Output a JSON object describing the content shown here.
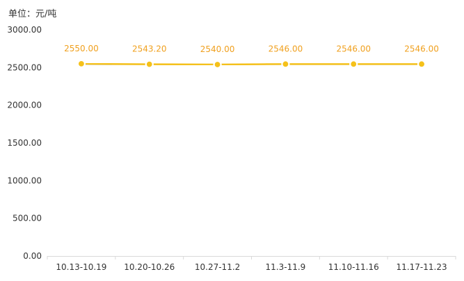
{
  "chart_data": {
    "type": "line",
    "unit_label": "单位：元/吨",
    "categories": [
      "10.13-10.19",
      "10.20-10.26",
      "10.27-11.2",
      "11.3-11.9",
      "11.10-11.16",
      "11.17-11.23"
    ],
    "series": [
      {
        "values": [
          2550.0,
          2543.2,
          2540.0,
          2546.0,
          2546.0,
          2546.0
        ]
      }
    ],
    "data_labels": [
      "2550.00",
      "2543.20",
      "2540.00",
      "2546.00",
      "2546.00",
      "2546.00"
    ],
    "y_ticks": [
      "0.00",
      "500.00",
      "1000.00",
      "1500.00",
      "2000.00",
      "2500.00",
      "3000.00"
    ],
    "ylim": [
      0,
      3000
    ],
    "grid": false,
    "colors": {
      "line": "#f5c11a",
      "marker_fill": "#f5c11a",
      "marker_stroke": "#ffffff",
      "label": "#f0a01e",
      "axis": "#d9d9d9"
    }
  }
}
